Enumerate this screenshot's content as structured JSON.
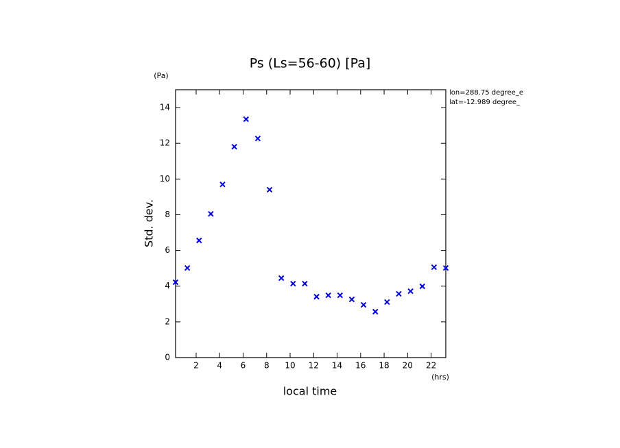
{
  "chart_data": {
    "type": "scatter",
    "title": "Ps (Ls=56-60) [Pa]",
    "y_unit": "(Pa)",
    "x_unit": "(hrs)",
    "ylabel": "Std. dev.",
    "xlabel": "local time",
    "annotations": [
      "lon=288.75 degree_e",
      "lat=-12.989 degree_"
    ],
    "color": "#0000dd",
    "x": [
      0.25,
      1.25,
      2.25,
      3.25,
      4.25,
      5.25,
      6.25,
      7.25,
      8.25,
      9.25,
      10.25,
      11.25,
      12.25,
      13.25,
      14.25,
      15.25,
      16.25,
      17.25,
      18.25,
      19.25,
      20.25,
      21.25,
      22.25,
      23.25
    ],
    "values": [
      4.22,
      5.02,
      6.56,
      8.05,
      9.7,
      11.81,
      13.35,
      12.27,
      9.4,
      4.45,
      4.14,
      4.14,
      3.41,
      3.49,
      3.49,
      3.26,
      2.95,
      2.57,
      3.11,
      3.57,
      3.72,
      3.99,
      5.06,
      5.02
    ],
    "xlim": [
      0.25,
      23.25
    ],
    "xticks": [
      2,
      4,
      6,
      8,
      10,
      12,
      14,
      16,
      18,
      20,
      22
    ],
    "ylim": [
      0,
      15
    ],
    "yticks": [
      0,
      2,
      4,
      6,
      8,
      10,
      12,
      14
    ]
  }
}
